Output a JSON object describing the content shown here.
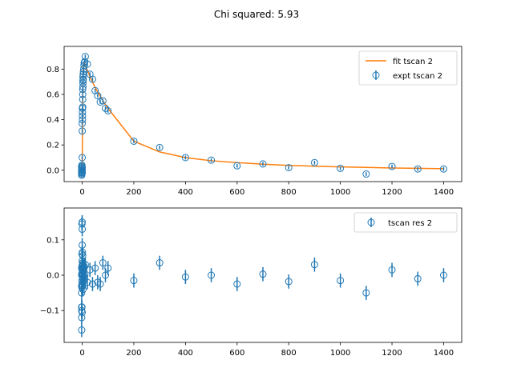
{
  "figure_title": "Chi squared: 5.93",
  "chart_data": [
    {
      "type": "scatter",
      "panel": "top",
      "xlim": [
        -70,
        1470
      ],
      "ylim": [
        -0.09,
        0.98
      ],
      "xticks": [
        0,
        200,
        400,
        600,
        800,
        1000,
        1200,
        1400
      ],
      "yticks": [
        0.0,
        0.2,
        0.4,
        0.6,
        0.8
      ],
      "ytick_labels": [
        "0.0",
        "0.2",
        "0.4",
        "0.6",
        "0.8"
      ],
      "grid": false,
      "legend_position": "top-right",
      "series": [
        {
          "name": "fit tscan 2",
          "kind": "line",
          "color": "#ff7f0e",
          "x": [
            -2,
            -1,
            0,
            1,
            2,
            3,
            5,
            7,
            10,
            15,
            20,
            25,
            30,
            40,
            50,
            60,
            70,
            80,
            90,
            100,
            200,
            300,
            400,
            500,
            600,
            700,
            800,
            900,
            1000,
            1100,
            1200,
            1300,
            1400
          ],
          "y": [
            0.0,
            0.0,
            0.02,
            0.3,
            0.55,
            0.72,
            0.82,
            0.85,
            0.84,
            0.81,
            0.79,
            0.77,
            0.74,
            0.7,
            0.655,
            0.62,
            0.585,
            0.55,
            0.52,
            0.49,
            0.23,
            0.145,
            0.1,
            0.075,
            0.06,
            0.048,
            0.038,
            0.032,
            0.026,
            0.022,
            0.018,
            0.015,
            0.012
          ]
        },
        {
          "name": "expt tscan 2",
          "kind": "errorbar",
          "color": "#1f77b4",
          "err": 0.015,
          "x": [
            -2,
            -2,
            -2,
            -2,
            -2,
            -2,
            -1,
            -1,
            -1,
            -1,
            -1,
            0,
            0,
            0,
            0,
            0,
            0,
            1,
            1,
            1,
            1,
            2,
            2,
            2,
            2,
            3,
            3,
            3,
            3,
            4,
            4,
            5,
            6,
            7,
            8,
            10,
            12,
            20,
            30,
            40,
            50,
            60,
            70,
            80,
            90,
            100,
            200,
            300,
            400,
            500,
            600,
            700,
            800,
            900,
            1000,
            1100,
            1200,
            1300,
            1400
          ],
          "y": [
            -0.02,
            -0.04,
            -0.01,
            0.0,
            0.02,
            0.03,
            -0.03,
            -0.01,
            0.01,
            0.03,
            0.04,
            0.0,
            -0.02,
            0.02,
            0.1,
            0.31,
            0.37,
            0.4,
            0.43,
            0.46,
            0.49,
            0.5,
            0.56,
            0.6,
            0.64,
            0.66,
            0.69,
            0.71,
            0.74,
            0.72,
            0.76,
            0.78,
            0.8,
            0.83,
            0.85,
            0.86,
            0.9,
            0.84,
            0.76,
            0.72,
            0.63,
            0.59,
            0.54,
            0.55,
            0.49,
            0.47,
            0.23,
            0.18,
            0.1,
            0.08,
            0.035,
            0.05,
            0.02,
            0.06,
            0.015,
            -0.03,
            0.03,
            0.01,
            0.01
          ]
        }
      ]
    },
    {
      "type": "scatter",
      "panel": "bottom",
      "xlim": [
        -70,
        1470
      ],
      "ylim": [
        -0.19,
        0.19
      ],
      "xticks": [
        0,
        200,
        400,
        600,
        800,
        1000,
        1200,
        1400
      ],
      "yticks": [
        -0.1,
        0.0,
        0.1
      ],
      "ytick_labels": [
        "−0.1",
        "0.0",
        "0.1"
      ],
      "grid": false,
      "legend_position": "top-right",
      "series": [
        {
          "name": "tscan res 2",
          "kind": "errorbar",
          "color": "#1f77b4",
          "err": 0.02,
          "x": [
            -2,
            -2,
            -2,
            -2,
            -2,
            -2,
            -2,
            -2,
            -1,
            -1,
            -1,
            -1,
            -1,
            -1,
            -1,
            0,
            0,
            0,
            0,
            0,
            0,
            0,
            1,
            1,
            1,
            1,
            2,
            2,
            2,
            2,
            3,
            3,
            3,
            3,
            4,
            4,
            5,
            6,
            7,
            8,
            10,
            12,
            20,
            30,
            40,
            50,
            60,
            70,
            80,
            90,
            100,
            200,
            300,
            400,
            500,
            600,
            700,
            800,
            900,
            1000,
            1100,
            1200,
            1300,
            1400
          ],
          "y": [
            -0.155,
            -0.12,
            -0.1,
            -0.09,
            -0.05,
            -0.03,
            0.0,
            0.02,
            -0.09,
            -0.035,
            -0.015,
            0.005,
            0.025,
            0.06,
            0.145,
            -0.105,
            -0.025,
            0.015,
            0.04,
            0.085,
            0.13,
            0.15,
            -0.03,
            0.0,
            0.03,
            0.065,
            0.055,
            0.02,
            -0.01,
            0.035,
            -0.04,
            0.005,
            0.03,
            -0.02,
            0.01,
            0.0,
            -0.015,
            0.02,
            0.025,
            -0.01,
            0.0,
            0.03,
            -0.02,
            0.015,
            -0.025,
            0.02,
            -0.02,
            -0.025,
            0.035,
            0.0,
            0.02,
            -0.015,
            0.035,
            -0.005,
            0.0,
            -0.025,
            0.003,
            -0.018,
            0.03,
            -0.015,
            -0.05,
            0.015,
            -0.01,
            0.0
          ]
        }
      ]
    }
  ]
}
